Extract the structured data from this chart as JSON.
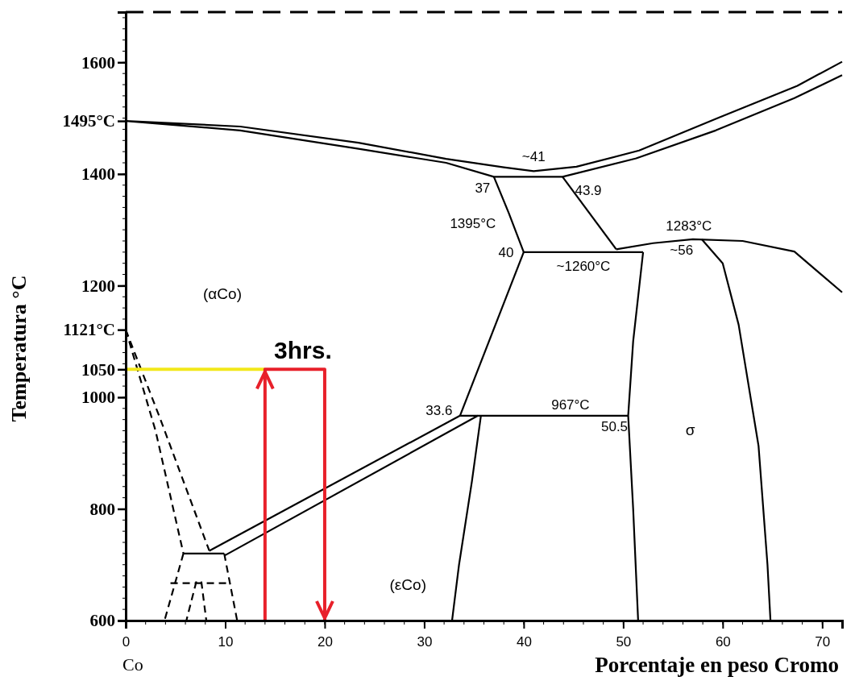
{
  "chart_data": {
    "type": "line",
    "xlabel": "Porcentaje en peso Cromo",
    "ylabel": "Temperatura °C",
    "xlim": [
      0,
      72
    ],
    "ylim": [
      600,
      1690
    ],
    "xticks": [
      0,
      10,
      20,
      30,
      40,
      50,
      60,
      70
    ],
    "yticks": [
      600,
      800,
      1000,
      {
        "value": 1050,
        "label": "1050"
      },
      {
        "value": 1121,
        "label": "1121°C"
      },
      1200,
      1400,
      {
        "value": 1495,
        "label": "1495°C"
      },
      1600
    ],
    "grid": false,
    "series": [
      {
        "color": "#000000",
        "x": [
          72,
          67.2,
          59.3,
          51.3,
          43.9,
          37,
          32.2,
          23.4,
          11.5,
          0,
          11.5,
          23.4,
          32.2,
          38,
          41,
          45.3,
          51.6,
          59.5,
          67.5,
          72
        ],
        "values": [
          1577,
          1536,
          1478,
          1428,
          1395,
          1395,
          1420,
          1445,
          1478,
          1495,
          1485,
          1456,
          1427,
          1412,
          1405,
          1413,
          1442,
          1500,
          1558,
          1601
        ]
      },
      {
        "color": "#000000",
        "x": [
          37,
          38.5,
          40
        ],
        "values": [
          1395,
          1330,
          1260
        ]
      },
      {
        "color": "#000000",
        "x": [
          40,
          52
        ],
        "values": [
          1260,
          1260
        ]
      },
      {
        "color": "#000000",
        "x": [
          43.9,
          49.3
        ],
        "values": [
          1395,
          1265
        ]
      },
      {
        "color": "#000000",
        "x": [
          40,
          33.6
        ],
        "values": [
          1260,
          967
        ]
      },
      {
        "color": "#000000",
        "x": [
          33.6,
          50.5
        ],
        "values": [
          967,
          967
        ]
      },
      {
        "color": "#000000",
        "x": [
          52,
          51,
          50.5,
          51,
          51.5
        ],
        "values": [
          1260,
          1100,
          967,
          800,
          600
        ]
      },
      {
        "color": "#000000",
        "x": [
          49.3,
          53,
          57,
          62,
          67.2,
          72
        ],
        "values": [
          1265,
          1276,
          1283,
          1280,
          1261,
          1188
        ]
      },
      {
        "color": "#000000",
        "x": [
          57.9,
          60,
          61.6,
          63.6,
          64.5,
          64.8
        ],
        "values": [
          1283,
          1240,
          1130,
          913,
          700,
          600
        ]
      },
      {
        "color": "#000000",
        "x": [
          35.7,
          34.8,
          33.5,
          32.8
        ],
        "values": [
          967,
          850,
          700,
          600
        ]
      },
      {
        "color": "#000000",
        "x": [
          8.4,
          33.6
        ],
        "values": [
          725,
          967
        ]
      },
      {
        "color": "#000000",
        "x": [
          9.9,
          35.4
        ],
        "values": [
          716,
          967
        ]
      },
      {
        "color": "#000000",
        "x": [
          5.8,
          9.9
        ],
        "values": [
          720,
          720
        ]
      },
      {
        "color": "#000000",
        "line_style": "dashed",
        "x": [
          0,
          3,
          5.8
        ],
        "values": [
          1121,
          940,
          720
        ]
      },
      {
        "color": "#000000",
        "line_style": "dashed",
        "x": [
          0,
          3.5,
          8.4
        ],
        "values": [
          1121,
          960,
          725
        ]
      },
      {
        "color": "#000000",
        "line_style": "dashed",
        "x": [
          5.8,
          3.9
        ],
        "values": [
          720,
          600
        ]
      },
      {
        "color": "#000000",
        "line_style": "dashed",
        "x": [
          9.9,
          11.2
        ],
        "values": [
          720,
          600
        ]
      },
      {
        "color": "#000000",
        "line_style": "dashed",
        "x": [
          4.5,
          10.3
        ],
        "values": [
          667,
          667
        ]
      },
      {
        "color": "#000000",
        "line_style": "dashed",
        "x": [
          7.1,
          6.1
        ],
        "values": [
          670,
          600
        ]
      },
      {
        "color": "#000000",
        "line_style": "dashed",
        "x": [
          7.6,
          8.1
        ],
        "values": [
          670,
          600
        ]
      },
      {
        "color": "#f2e81a",
        "x": [
          0,
          14
        ],
        "values": [
          1050,
          1050
        ]
      },
      {
        "color": "#e8202a",
        "x": [
          14,
          14,
          20,
          20
        ],
        "values": [
          600,
          1050,
          1050,
          600
        ]
      }
    ],
    "annotations": [
      {
        "text": "~41",
        "x": 41,
        "y": 1405
      },
      {
        "text": "37",
        "x": 37,
        "y": 1395
      },
      {
        "text": "43.9",
        "x": 43.9,
        "y": 1395
      },
      {
        "text": "1395°C",
        "x": 37,
        "y": 1395
      },
      {
        "text": "40",
        "x": 40,
        "y": 1260
      },
      {
        "text": "~1260°C",
        "x": 46,
        "y": 1260
      },
      {
        "text": "1283°C",
        "x": 57,
        "y": 1283
      },
      {
        "text": "~56",
        "x": 57,
        "y": 1283
      },
      {
        "text": "33.6",
        "x": 33.6,
        "y": 967
      },
      {
        "text": "967°C",
        "x": 44.7,
        "y": 967
      },
      {
        "text": "50.5",
        "x": 50.5,
        "y": 967
      },
      {
        "text": "3hrs.",
        "x": 17,
        "y": 1050
      },
      "(αCo)",
      "(εCo)",
      "σ",
      "Co"
    ]
  }
}
